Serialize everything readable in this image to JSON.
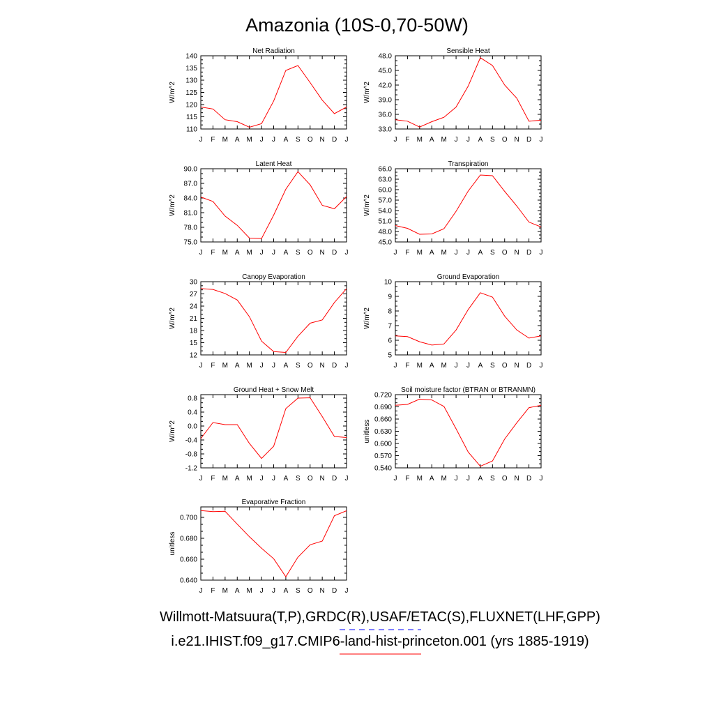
{
  "figure": {
    "title": "Amazonia (10S-0,70-50W)",
    "legend": [
      {
        "label": "Willmott-Matsuura(T,P),GRDC(R),USAF/ETAC(S),FLUXNET(LHF,GPP)",
        "color": "#0000ff",
        "style": "dashed"
      },
      {
        "label": "i.e21.IHIST.f09_g17.CMIP6-land-hist-princeton.001 (yrs 1885-1919)",
        "color": "#ff0000",
        "style": "solid"
      }
    ]
  },
  "chart_data": [
    {
      "type": "line",
      "title": "Net Radiation",
      "ylabel": "W/m^2",
      "x": [
        "J",
        "F",
        "M",
        "A",
        "M",
        "J",
        "J",
        "A",
        "S",
        "O",
        "N",
        "D",
        "J"
      ],
      "ylim": [
        110,
        140
      ],
      "yticks": [
        "110",
        "115",
        "120",
        "125",
        "130",
        "135",
        "140"
      ],
      "series": [
        {
          "color": "#ff0000",
          "values": [
            119.0,
            118.2,
            113.8,
            113.0,
            110.7,
            112.2,
            121.5,
            134.0,
            136.0,
            129.0,
            121.8,
            116.3,
            119.0
          ]
        }
      ]
    },
    {
      "type": "line",
      "title": "Sensible Heat",
      "ylabel": "W/m^2",
      "x": [
        "J",
        "F",
        "M",
        "A",
        "M",
        "J",
        "J",
        "A",
        "S",
        "O",
        "N",
        "D",
        "J"
      ],
      "ylim": [
        33,
        48
      ],
      "yticks": [
        "33.0",
        "36.0",
        "39.0",
        "42.0",
        "45.0",
        "48.0"
      ],
      "series": [
        {
          "color": "#ff0000",
          "values": [
            34.9,
            34.6,
            33.4,
            34.5,
            35.4,
            37.5,
            41.8,
            47.6,
            46.0,
            42.0,
            39.3,
            34.6,
            34.8
          ]
        }
      ]
    },
    {
      "type": "line",
      "title": "Latent Heat",
      "ylabel": "W/m^2",
      "x": [
        "J",
        "F",
        "M",
        "A",
        "M",
        "J",
        "J",
        "A",
        "S",
        "O",
        "N",
        "D",
        "J"
      ],
      "ylim": [
        75,
        90
      ],
      "yticks": [
        "75.0",
        "78.0",
        "81.0",
        "84.0",
        "87.0",
        "90.0"
      ],
      "series": [
        {
          "color": "#ff0000",
          "values": [
            84.2,
            83.3,
            80.3,
            78.4,
            75.8,
            75.7,
            80.5,
            85.8,
            89.4,
            86.7,
            82.5,
            81.8,
            84.3
          ]
        }
      ]
    },
    {
      "type": "line",
      "title": "Transpiration",
      "ylabel": "W/m^2",
      "x": [
        "J",
        "F",
        "M",
        "A",
        "M",
        "J",
        "J",
        "A",
        "S",
        "O",
        "N",
        "D",
        "J"
      ],
      "ylim": [
        45,
        66
      ],
      "yticks": [
        "45.0",
        "48.0",
        "51.0",
        "54.0",
        "57.0",
        "60.0",
        "63.0",
        "66.0"
      ],
      "series": [
        {
          "color": "#ff0000",
          "values": [
            49.7,
            48.9,
            47.2,
            47.3,
            48.8,
            53.8,
            59.6,
            64.2,
            64.0,
            59.5,
            55.3,
            50.7,
            49.3
          ]
        }
      ]
    },
    {
      "type": "line",
      "title": "Canopy Evaporation",
      "ylabel": "W/m^2",
      "x": [
        "J",
        "F",
        "M",
        "A",
        "M",
        "J",
        "J",
        "A",
        "S",
        "O",
        "N",
        "D",
        "J"
      ],
      "ylim": [
        12,
        30
      ],
      "yticks": [
        "12",
        "15",
        "18",
        "21",
        "24",
        "27",
        "30"
      ],
      "series": [
        {
          "color": "#ff0000",
          "values": [
            28.3,
            28.1,
            27.1,
            25.5,
            21.4,
            15.4,
            12.8,
            12.6,
            16.6,
            19.8,
            20.6,
            24.9,
            28.3
          ]
        }
      ]
    },
    {
      "type": "line",
      "title": "Ground Evaporation",
      "ylabel": "W/m^2",
      "x": [
        "J",
        "F",
        "M",
        "A",
        "M",
        "J",
        "J",
        "A",
        "S",
        "O",
        "N",
        "D",
        "J"
      ],
      "ylim": [
        5,
        10
      ],
      "yticks": [
        "5",
        "6",
        "7",
        "8",
        "9",
        "10"
      ],
      "series": [
        {
          "color": "#ff0000",
          "values": [
            6.3,
            6.25,
            5.9,
            5.67,
            5.75,
            6.7,
            8.1,
            9.25,
            8.95,
            7.65,
            6.7,
            6.15,
            6.3
          ]
        }
      ]
    },
    {
      "type": "line",
      "title": "Ground Heat + Snow Melt",
      "ylabel": "W/m^2",
      "x": [
        "J",
        "F",
        "M",
        "A",
        "M",
        "J",
        "J",
        "A",
        "S",
        "O",
        "N",
        "D",
        "J"
      ],
      "ylim": [
        -1.2,
        0.9
      ],
      "yticks": [
        "-1.2",
        "-0.8",
        "-0.4",
        "0.0",
        "0.4",
        "0.8"
      ],
      "series": [
        {
          "color": "#ff0000",
          "values": [
            -0.36,
            0.1,
            0.04,
            0.04,
            -0.5,
            -0.93,
            -0.58,
            0.5,
            0.8,
            0.81,
            0.27,
            -0.3,
            -0.33
          ]
        }
      ]
    },
    {
      "type": "line",
      "title": "Soil moisture factor (BTRAN or BTRANMN)",
      "ylabel": "unitless",
      "x": [
        "J",
        "F",
        "M",
        "A",
        "M",
        "J",
        "J",
        "A",
        "S",
        "O",
        "N",
        "D",
        "J"
      ],
      "ylim": [
        0.54,
        0.72
      ],
      "yticks": [
        "0.540",
        "0.570",
        "0.600",
        "0.630",
        "0.660",
        "0.690",
        "0.720"
      ],
      "series": [
        {
          "color": "#ff0000",
          "values": [
            0.694,
            0.696,
            0.709,
            0.707,
            0.691,
            0.636,
            0.579,
            0.544,
            0.557,
            0.611,
            0.651,
            0.688,
            0.694
          ]
        }
      ]
    },
    {
      "type": "line",
      "title": "Evaporative Fraction",
      "ylabel": "unitless",
      "x": [
        "J",
        "F",
        "M",
        "A",
        "M",
        "J",
        "J",
        "A",
        "S",
        "O",
        "N",
        "D",
        "J"
      ],
      "ylim": [
        0.64,
        0.71
      ],
      "yticks": [
        "0.640",
        "0.660",
        "0.680",
        "0.700"
      ],
      "series": [
        {
          "color": "#ff0000",
          "values": [
            0.7065,
            0.7055,
            0.7058,
            0.6935,
            0.6815,
            0.6705,
            0.6605,
            0.6432,
            0.662,
            0.6738,
            0.6773,
            0.7015,
            0.7063
          ]
        }
      ]
    }
  ]
}
